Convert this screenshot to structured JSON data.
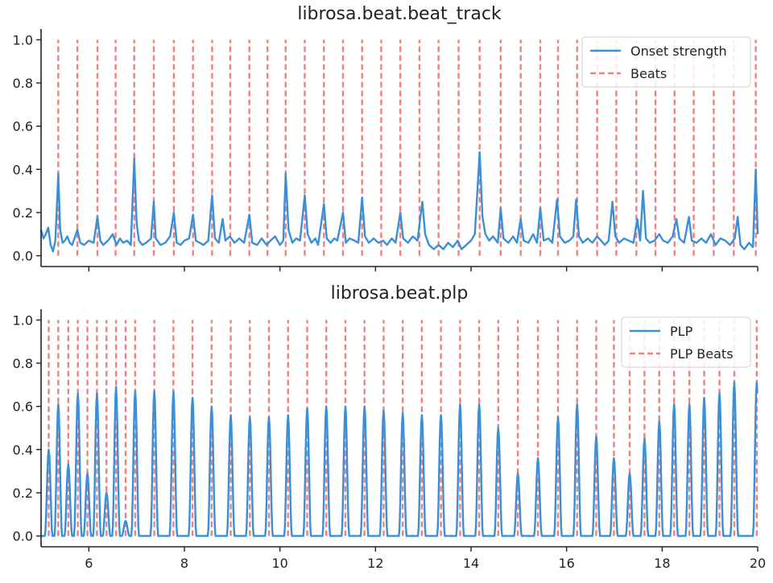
{
  "chart_data": [
    {
      "type": "line",
      "title": "librosa.beat.beat_track",
      "xlabel": "",
      "ylabel": "",
      "xlim": [
        5,
        20
      ],
      "ylim": [
        -0.05,
        1.05
      ],
      "yticks": [
        0.0,
        0.2,
        0.4,
        0.6,
        0.8,
        1.0
      ],
      "ytick_labels": [
        "0.0",
        "0.2",
        "0.4",
        "0.6",
        "0.8",
        "1.0"
      ],
      "xticks": [
        6,
        8,
        10,
        12,
        14,
        16,
        18,
        20
      ],
      "xtick_labels": [],
      "legend_position": "top-right",
      "grid": false,
      "series": [
        {
          "name": "Onset strength",
          "style": "solid",
          "color": "#3a8fd9",
          "points": [
            [
              5.0,
              0.12
            ],
            [
              5.05,
              0.08
            ],
            [
              5.1,
              0.1
            ],
            [
              5.15,
              0.13
            ],
            [
              5.2,
              0.05
            ],
            [
              5.25,
              0.02
            ],
            [
              5.3,
              0.07
            ],
            [
              5.36,
              0.38
            ],
            [
              5.4,
              0.12
            ],
            [
              5.45,
              0.06
            ],
            [
              5.5,
              0.07
            ],
            [
              5.55,
              0.09
            ],
            [
              5.6,
              0.06
            ],
            [
              5.65,
              0.05
            ],
            [
              5.7,
              0.08
            ],
            [
              5.76,
              0.12
            ],
            [
              5.82,
              0.06
            ],
            [
              5.9,
              0.05
            ],
            [
              6.0,
              0.07
            ],
            [
              6.1,
              0.06
            ],
            [
              6.18,
              0.18
            ],
            [
              6.24,
              0.07
            ],
            [
              6.3,
              0.05
            ],
            [
              6.4,
              0.07
            ],
            [
              6.5,
              0.1
            ],
            [
              6.58,
              0.05
            ],
            [
              6.65,
              0.08
            ],
            [
              6.72,
              0.06
            ],
            [
              6.8,
              0.07
            ],
            [
              6.88,
              0.05
            ],
            [
              6.95,
              0.45
            ],
            [
              7.0,
              0.15
            ],
            [
              7.05,
              0.07
            ],
            [
              7.12,
              0.05
            ],
            [
              7.2,
              0.06
            ],
            [
              7.3,
              0.08
            ],
            [
              7.36,
              0.25
            ],
            [
              7.4,
              0.08
            ],
            [
              7.5,
              0.05
            ],
            [
              7.6,
              0.06
            ],
            [
              7.7,
              0.09
            ],
            [
              7.78,
              0.2
            ],
            [
              7.84,
              0.06
            ],
            [
              7.92,
              0.05
            ],
            [
              8.0,
              0.07
            ],
            [
              8.1,
              0.08
            ],
            [
              8.18,
              0.19
            ],
            [
              8.24,
              0.07
            ],
            [
              8.32,
              0.06
            ],
            [
              8.4,
              0.05
            ],
            [
              8.5,
              0.07
            ],
            [
              8.58,
              0.28
            ],
            [
              8.64,
              0.08
            ],
            [
              8.72,
              0.06
            ],
            [
              8.8,
              0.17
            ],
            [
              8.86,
              0.07
            ],
            [
              8.95,
              0.09
            ],
            [
              9.05,
              0.06
            ],
            [
              9.15,
              0.08
            ],
            [
              9.25,
              0.06
            ],
            [
              9.36,
              0.19
            ],
            [
              9.42,
              0.06
            ],
            [
              9.52,
              0.05
            ],
            [
              9.62,
              0.08
            ],
            [
              9.72,
              0.05
            ],
            [
              9.8,
              0.07
            ],
            [
              9.9,
              0.09
            ],
            [
              10.0,
              0.05
            ],
            [
              10.07,
              0.07
            ],
            [
              10.12,
              0.38
            ],
            [
              10.18,
              0.12
            ],
            [
              10.26,
              0.06
            ],
            [
              10.34,
              0.08
            ],
            [
              10.42,
              0.07
            ],
            [
              10.52,
              0.28
            ],
            [
              10.58,
              0.1
            ],
            [
              10.66,
              0.06
            ],
            [
              10.74,
              0.08
            ],
            [
              10.8,
              0.05
            ],
            [
              10.92,
              0.24
            ],
            [
              10.98,
              0.08
            ],
            [
              11.06,
              0.06
            ],
            [
              11.14,
              0.08
            ],
            [
              11.2,
              0.07
            ],
            [
              11.32,
              0.2
            ],
            [
              11.38,
              0.06
            ],
            [
              11.46,
              0.08
            ],
            [
              11.56,
              0.07
            ],
            [
              11.64,
              0.06
            ],
            [
              11.72,
              0.27
            ],
            [
              11.78,
              0.09
            ],
            [
              11.86,
              0.06
            ],
            [
              11.96,
              0.08
            ],
            [
              12.06,
              0.06
            ],
            [
              12.16,
              0.07
            ],
            [
              12.24,
              0.05
            ],
            [
              12.34,
              0.08
            ],
            [
              12.42,
              0.06
            ],
            [
              12.52,
              0.2
            ],
            [
              12.58,
              0.08
            ],
            [
              12.68,
              0.06
            ],
            [
              12.78,
              0.09
            ],
            [
              12.88,
              0.07
            ],
            [
              12.98,
              0.25
            ],
            [
              13.04,
              0.1
            ],
            [
              13.12,
              0.05
            ],
            [
              13.22,
              0.03
            ],
            [
              13.32,
              0.05
            ],
            [
              13.42,
              0.03
            ],
            [
              13.52,
              0.06
            ],
            [
              13.62,
              0.04
            ],
            [
              13.72,
              0.07
            ],
            [
              13.8,
              0.03
            ],
            [
              13.9,
              0.05
            ],
            [
              14.0,
              0.07
            ],
            [
              14.08,
              0.1
            ],
            [
              14.18,
              0.48
            ],
            [
              14.24,
              0.18
            ],
            [
              14.3,
              0.1
            ],
            [
              14.38,
              0.07
            ],
            [
              14.46,
              0.09
            ],
            [
              14.56,
              0.06
            ],
            [
              14.62,
              0.22
            ],
            [
              14.68,
              0.08
            ],
            [
              14.78,
              0.06
            ],
            [
              14.88,
              0.09
            ],
            [
              14.96,
              0.06
            ],
            [
              15.04,
              0.17
            ],
            [
              15.1,
              0.07
            ],
            [
              15.2,
              0.06
            ],
            [
              15.3,
              0.1
            ],
            [
              15.38,
              0.06
            ],
            [
              15.45,
              0.22
            ],
            [
              15.52,
              0.07
            ],
            [
              15.62,
              0.08
            ],
            [
              15.7,
              0.06
            ],
            [
              15.8,
              0.26
            ],
            [
              15.86,
              0.09
            ],
            [
              15.96,
              0.06
            ],
            [
              16.06,
              0.07
            ],
            [
              16.14,
              0.09
            ],
            [
              16.2,
              0.26
            ],
            [
              16.26,
              0.09
            ],
            [
              16.34,
              0.06
            ],
            [
              16.44,
              0.08
            ],
            [
              16.54,
              0.06
            ],
            [
              16.64,
              0.09
            ],
            [
              16.72,
              0.07
            ],
            [
              16.8,
              0.05
            ],
            [
              16.88,
              0.07
            ],
            [
              16.96,
              0.25
            ],
            [
              17.02,
              0.09
            ],
            [
              17.1,
              0.06
            ],
            [
              17.2,
              0.08
            ],
            [
              17.3,
              0.07
            ],
            [
              17.4,
              0.06
            ],
            [
              17.48,
              0.17
            ],
            [
              17.54,
              0.07
            ],
            [
              17.6,
              0.3
            ],
            [
              17.66,
              0.08
            ],
            [
              17.74,
              0.06
            ],
            [
              17.84,
              0.07
            ],
            [
              17.94,
              0.1
            ],
            [
              18.02,
              0.07
            ],
            [
              18.12,
              0.06
            ],
            [
              18.22,
              0.09
            ],
            [
              18.3,
              0.17
            ],
            [
              18.36,
              0.08
            ],
            [
              18.46,
              0.06
            ],
            [
              18.56,
              0.18
            ],
            [
              18.62,
              0.07
            ],
            [
              18.72,
              0.06
            ],
            [
              18.82,
              0.08
            ],
            [
              18.92,
              0.06
            ],
            [
              19.02,
              0.1
            ],
            [
              19.12,
              0.05
            ],
            [
              19.22,
              0.08
            ],
            [
              19.32,
              0.07
            ],
            [
              19.42,
              0.05
            ],
            [
              19.52,
              0.08
            ],
            [
              19.58,
              0.18
            ],
            [
              19.64,
              0.05
            ],
            [
              19.72,
              0.03
            ],
            [
              19.82,
              0.06
            ],
            [
              19.9,
              0.04
            ],
            [
              19.96,
              0.4
            ],
            [
              20.0,
              0.1
            ]
          ]
        }
      ],
      "markers": {
        "name": "Beats",
        "style": "dashed",
        "color": "#f08080",
        "y_range": [
          0,
          1
        ],
        "x": [
          5.36,
          5.76,
          6.18,
          6.56,
          6.95,
          7.36,
          7.78,
          8.18,
          8.58,
          8.96,
          9.36,
          9.74,
          10.12,
          10.52,
          10.92,
          11.32,
          11.72,
          12.12,
          12.52,
          12.92,
          13.32,
          13.74,
          14.18,
          14.62,
          15.04,
          15.45,
          15.82,
          16.22,
          16.64,
          17.04,
          17.46,
          17.86,
          18.26,
          18.66,
          19.08,
          19.5,
          19.96
        ]
      }
    },
    {
      "type": "line",
      "title": "librosa.beat.plp",
      "xlabel": "",
      "ylabel": "",
      "xlim": [
        5,
        20
      ],
      "ylim": [
        -0.05,
        1.05
      ],
      "yticks": [
        0.0,
        0.2,
        0.4,
        0.6,
        0.8,
        1.0
      ],
      "ytick_labels": [
        "0.0",
        "0.2",
        "0.4",
        "0.6",
        "0.8",
        "1.0"
      ],
      "xticks": [
        6,
        8,
        10,
        12,
        14,
        16,
        18,
        20
      ],
      "xtick_labels": [
        "6",
        "8",
        "10",
        "12",
        "14",
        "16",
        "18",
        "20"
      ],
      "legend_position": "top-right",
      "grid": false,
      "series": [
        {
          "name": "PLP",
          "style": "solid",
          "color": "#3a8fd9",
          "peaks": [
            [
              5.16,
              0.4
            ],
            [
              5.36,
              0.61
            ],
            [
              5.57,
              0.33
            ],
            [
              5.77,
              0.66
            ],
            [
              5.97,
              0.29
            ],
            [
              6.17,
              0.66
            ],
            [
              6.37,
              0.2
            ],
            [
              6.57,
              0.69
            ],
            [
              6.77,
              0.07
            ],
            [
              6.97,
              0.67
            ],
            [
              7.37,
              0.67
            ],
            [
              7.77,
              0.67
            ],
            [
              8.17,
              0.64
            ],
            [
              8.57,
              0.6
            ],
            [
              8.97,
              0.56
            ],
            [
              9.37,
              0.55
            ],
            [
              9.77,
              0.55
            ],
            [
              10.17,
              0.56
            ],
            [
              10.57,
              0.59
            ],
            [
              10.97,
              0.6
            ],
            [
              11.37,
              0.6
            ],
            [
              11.77,
              0.6
            ],
            [
              12.17,
              0.58
            ],
            [
              12.57,
              0.57
            ],
            [
              12.97,
              0.56
            ],
            [
              13.37,
              0.56
            ],
            [
              13.77,
              0.61
            ],
            [
              14.17,
              0.61
            ],
            [
              14.57,
              0.5
            ],
            [
              14.98,
              0.29
            ],
            [
              15.4,
              0.36
            ],
            [
              15.82,
              0.55
            ],
            [
              16.22,
              0.61
            ],
            [
              16.62,
              0.46
            ],
            [
              16.99,
              0.36
            ],
            [
              17.32,
              0.29
            ],
            [
              17.63,
              0.45
            ],
            [
              17.94,
              0.53
            ],
            [
              18.25,
              0.61
            ],
            [
              18.57,
              0.61
            ],
            [
              18.88,
              0.64
            ],
            [
              19.2,
              0.66
            ],
            [
              19.51,
              0.71
            ],
            [
              19.98,
              0.71
            ]
          ]
        }
      ],
      "markers": {
        "name": "PLP Beats",
        "style": "dashed",
        "color": "#f08080",
        "y_range": [
          0,
          1
        ],
        "x": [
          5.16,
          5.36,
          5.57,
          5.77,
          5.97,
          6.17,
          6.37,
          6.57,
          6.77,
          6.97,
          7.37,
          7.77,
          8.17,
          8.57,
          8.97,
          9.37,
          9.77,
          10.17,
          10.57,
          10.97,
          11.37,
          11.77,
          12.17,
          12.57,
          12.97,
          13.37,
          13.77,
          14.17,
          14.57,
          14.98,
          15.4,
          15.82,
          16.22,
          16.62,
          16.99,
          17.32,
          17.63,
          17.94,
          18.25,
          18.57,
          18.88,
          19.2,
          19.51,
          19.98
        ]
      }
    }
  ]
}
